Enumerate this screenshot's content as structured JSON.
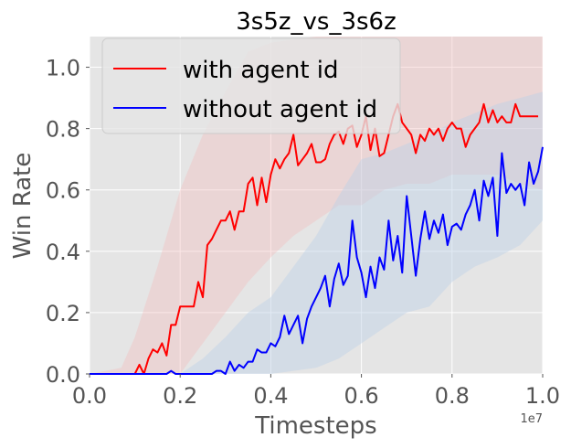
{
  "chart_data": {
    "type": "line",
    "title": "3s5z_vs_3s6z",
    "xlabel": "Timesteps",
    "ylabel": "Win Rate",
    "x_offset_label": "1e7",
    "xlim": [
      0.0,
      1.0
    ],
    "ylim": [
      0.0,
      1.1
    ],
    "xticks": [
      0.0,
      0.2,
      0.4,
      0.6,
      0.8,
      1.0
    ],
    "xtick_labels": [
      "0.0",
      "0.2",
      "0.4",
      "0.6",
      "0.8",
      "1.0"
    ],
    "yticks": [
      0.0,
      0.2,
      0.4,
      0.6,
      0.8,
      1.0
    ],
    "ytick_labels": [
      "0.0",
      "0.2",
      "0.4",
      "0.6",
      "0.8",
      "1.0"
    ],
    "grid": true,
    "legend_position": "top-left",
    "background": "#e5e5e5",
    "series": [
      {
        "name": "with agent id",
        "color": "#ff0000",
        "band_color": "#f4b6b6",
        "points": [
          [
            0.0,
            0.0
          ],
          [
            0.02,
            0.0
          ],
          [
            0.04,
            0.0
          ],
          [
            0.06,
            0.0
          ],
          [
            0.08,
            0.0
          ],
          [
            0.1,
            0.0
          ],
          [
            0.11,
            0.03
          ],
          [
            0.12,
            0.0
          ],
          [
            0.13,
            0.05
          ],
          [
            0.14,
            0.08
          ],
          [
            0.15,
            0.07
          ],
          [
            0.16,
            0.1
          ],
          [
            0.17,
            0.06
          ],
          [
            0.18,
            0.16
          ],
          [
            0.19,
            0.16
          ],
          [
            0.2,
            0.22
          ],
          [
            0.21,
            0.22
          ],
          [
            0.22,
            0.22
          ],
          [
            0.23,
            0.22
          ],
          [
            0.24,
            0.3
          ],
          [
            0.25,
            0.25
          ],
          [
            0.26,
            0.42
          ],
          [
            0.27,
            0.44
          ],
          [
            0.28,
            0.47
          ],
          [
            0.29,
            0.5
          ],
          [
            0.3,
            0.5
          ],
          [
            0.31,
            0.53
          ],
          [
            0.32,
            0.47
          ],
          [
            0.33,
            0.53
          ],
          [
            0.34,
            0.53
          ],
          [
            0.35,
            0.62
          ],
          [
            0.36,
            0.64
          ],
          [
            0.37,
            0.55
          ],
          [
            0.38,
            0.64
          ],
          [
            0.39,
            0.56
          ],
          [
            0.4,
            0.65
          ],
          [
            0.41,
            0.7
          ],
          [
            0.42,
            0.67
          ],
          [
            0.43,
            0.7
          ],
          [
            0.44,
            0.72
          ],
          [
            0.45,
            0.78
          ],
          [
            0.46,
            0.68
          ],
          [
            0.47,
            0.7
          ],
          [
            0.48,
            0.72
          ],
          [
            0.49,
            0.75
          ],
          [
            0.5,
            0.69
          ],
          [
            0.51,
            0.69
          ],
          [
            0.52,
            0.7
          ],
          [
            0.53,
            0.75
          ],
          [
            0.54,
            0.78
          ],
          [
            0.55,
            0.79
          ],
          [
            0.56,
            0.75
          ],
          [
            0.57,
            0.8
          ],
          [
            0.58,
            0.81
          ],
          [
            0.59,
            0.74
          ],
          [
            0.6,
            0.78
          ],
          [
            0.61,
            0.84
          ],
          [
            0.62,
            0.73
          ],
          [
            0.63,
            0.8
          ],
          [
            0.64,
            0.71
          ],
          [
            0.65,
            0.72
          ],
          [
            0.66,
            0.78
          ],
          [
            0.67,
            0.84
          ],
          [
            0.68,
            0.88
          ],
          [
            0.69,
            0.82
          ],
          [
            0.7,
            0.8
          ],
          [
            0.71,
            0.78
          ],
          [
            0.72,
            0.72
          ],
          [
            0.73,
            0.78
          ],
          [
            0.74,
            0.76
          ],
          [
            0.75,
            0.8
          ],
          [
            0.76,
            0.78
          ],
          [
            0.77,
            0.8
          ],
          [
            0.78,
            0.76
          ],
          [
            0.79,
            0.8
          ],
          [
            0.8,
            0.82
          ],
          [
            0.81,
            0.8
          ],
          [
            0.82,
            0.8
          ],
          [
            0.83,
            0.74
          ],
          [
            0.84,
            0.78
          ],
          [
            0.85,
            0.8
          ],
          [
            0.86,
            0.82
          ],
          [
            0.87,
            0.88
          ],
          [
            0.88,
            0.82
          ],
          [
            0.89,
            0.86
          ],
          [
            0.9,
            0.82
          ],
          [
            0.91,
            0.84
          ],
          [
            0.92,
            0.82
          ],
          [
            0.93,
            0.82
          ],
          [
            0.94,
            0.88
          ],
          [
            0.95,
            0.84
          ],
          [
            0.96,
            0.84
          ],
          [
            0.97,
            0.84
          ],
          [
            0.98,
            0.84
          ],
          [
            0.99,
            0.84
          ]
        ],
        "band_lower": [
          [
            0.0,
            0.0
          ],
          [
            0.1,
            0.0
          ],
          [
            0.2,
            0.0
          ],
          [
            0.25,
            0.1
          ],
          [
            0.3,
            0.2
          ],
          [
            0.35,
            0.3
          ],
          [
            0.4,
            0.38
          ],
          [
            0.45,
            0.45
          ],
          [
            0.5,
            0.5
          ],
          [
            0.55,
            0.55
          ],
          [
            0.6,
            0.55
          ],
          [
            0.65,
            0.6
          ],
          [
            0.7,
            0.62
          ],
          [
            0.75,
            0.62
          ],
          [
            0.8,
            0.65
          ],
          [
            0.85,
            0.65
          ],
          [
            0.9,
            0.65
          ],
          [
            0.95,
            0.62
          ],
          [
            1.0,
            0.6
          ]
        ],
        "band_upper": [
          [
            0.0,
            0.0
          ],
          [
            0.07,
            0.02
          ],
          [
            0.1,
            0.12
          ],
          [
            0.15,
            0.35
          ],
          [
            0.2,
            0.6
          ],
          [
            0.25,
            0.78
          ],
          [
            0.3,
            0.92
          ],
          [
            0.35,
            1.05
          ],
          [
            0.4,
            1.08
          ],
          [
            0.5,
            1.1
          ],
          [
            0.6,
            1.1
          ],
          [
            0.7,
            1.1
          ],
          [
            0.8,
            1.1
          ],
          [
            0.9,
            1.1
          ],
          [
            1.0,
            1.1
          ]
        ]
      },
      {
        "name": "without agent id",
        "color": "#0000ff",
        "band_color": "#bdd0e6",
        "points": [
          [
            0.0,
            0.0
          ],
          [
            0.05,
            0.0
          ],
          [
            0.1,
            0.0
          ],
          [
            0.15,
            0.0
          ],
          [
            0.17,
            0.0
          ],
          [
            0.18,
            0.01
          ],
          [
            0.19,
            0.0
          ],
          [
            0.22,
            0.0
          ],
          [
            0.25,
            0.0
          ],
          [
            0.27,
            0.0
          ],
          [
            0.28,
            0.01
          ],
          [
            0.29,
            0.01
          ],
          [
            0.3,
            0.0
          ],
          [
            0.31,
            0.04
          ],
          [
            0.32,
            0.01
          ],
          [
            0.33,
            0.03
          ],
          [
            0.34,
            0.02
          ],
          [
            0.35,
            0.04
          ],
          [
            0.36,
            0.04
          ],
          [
            0.37,
            0.08
          ],
          [
            0.38,
            0.07
          ],
          [
            0.39,
            0.07
          ],
          [
            0.4,
            0.1
          ],
          [
            0.41,
            0.09
          ],
          [
            0.42,
            0.12
          ],
          [
            0.43,
            0.19
          ],
          [
            0.44,
            0.13
          ],
          [
            0.45,
            0.16
          ],
          [
            0.46,
            0.19
          ],
          [
            0.47,
            0.1
          ],
          [
            0.48,
            0.18
          ],
          [
            0.49,
            0.22
          ],
          [
            0.5,
            0.25
          ],
          [
            0.51,
            0.28
          ],
          [
            0.52,
            0.32
          ],
          [
            0.53,
            0.22
          ],
          [
            0.54,
            0.31
          ],
          [
            0.55,
            0.36
          ],
          [
            0.56,
            0.29
          ],
          [
            0.57,
            0.32
          ],
          [
            0.58,
            0.5
          ],
          [
            0.59,
            0.38
          ],
          [
            0.6,
            0.33
          ],
          [
            0.61,
            0.25
          ],
          [
            0.62,
            0.35
          ],
          [
            0.63,
            0.28
          ],
          [
            0.64,
            0.38
          ],
          [
            0.65,
            0.34
          ],
          [
            0.66,
            0.5
          ],
          [
            0.67,
            0.37
          ],
          [
            0.68,
            0.45
          ],
          [
            0.69,
            0.33
          ],
          [
            0.7,
            0.58
          ],
          [
            0.71,
            0.45
          ],
          [
            0.72,
            0.32
          ],
          [
            0.73,
            0.44
          ],
          [
            0.74,
            0.53
          ],
          [
            0.75,
            0.44
          ],
          [
            0.76,
            0.5
          ],
          [
            0.77,
            0.46
          ],
          [
            0.78,
            0.52
          ],
          [
            0.79,
            0.42
          ],
          [
            0.8,
            0.48
          ],
          [
            0.81,
            0.49
          ],
          [
            0.82,
            0.47
          ],
          [
            0.83,
            0.52
          ],
          [
            0.84,
            0.55
          ],
          [
            0.85,
            0.6
          ],
          [
            0.86,
            0.5
          ],
          [
            0.87,
            0.63
          ],
          [
            0.88,
            0.58
          ],
          [
            0.89,
            0.64
          ],
          [
            0.9,
            0.45
          ],
          [
            0.91,
            0.72
          ],
          [
            0.92,
            0.59
          ],
          [
            0.93,
            0.62
          ],
          [
            0.94,
            0.6
          ],
          [
            0.95,
            0.62
          ],
          [
            0.96,
            0.55
          ],
          [
            0.97,
            0.69
          ],
          [
            0.98,
            0.62
          ],
          [
            0.99,
            0.66
          ],
          [
            1.0,
            0.74
          ]
        ],
        "band_lower": [
          [
            0.0,
            0.0
          ],
          [
            0.3,
            0.0
          ],
          [
            0.4,
            0.0
          ],
          [
            0.5,
            0.02
          ],
          [
            0.55,
            0.05
          ],
          [
            0.6,
            0.1
          ],
          [
            0.65,
            0.15
          ],
          [
            0.7,
            0.2
          ],
          [
            0.75,
            0.22
          ],
          [
            0.8,
            0.3
          ],
          [
            0.85,
            0.35
          ],
          [
            0.9,
            0.38
          ],
          [
            0.95,
            0.42
          ],
          [
            1.0,
            0.5
          ]
        ],
        "band_upper": [
          [
            0.0,
            0.0
          ],
          [
            0.2,
            0.0
          ],
          [
            0.25,
            0.05
          ],
          [
            0.3,
            0.12
          ],
          [
            0.35,
            0.2
          ],
          [
            0.4,
            0.25
          ],
          [
            0.45,
            0.35
          ],
          [
            0.5,
            0.45
          ],
          [
            0.55,
            0.58
          ],
          [
            0.6,
            0.7
          ],
          [
            0.65,
            0.72
          ],
          [
            0.7,
            0.75
          ],
          [
            0.75,
            0.78
          ],
          [
            0.8,
            0.82
          ],
          [
            0.85,
            0.85
          ],
          [
            0.9,
            0.88
          ],
          [
            0.95,
            0.9
          ],
          [
            1.0,
            0.92
          ]
        ]
      }
    ]
  }
}
